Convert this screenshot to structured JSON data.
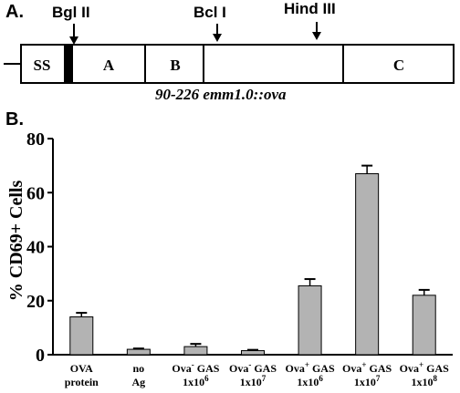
{
  "panel_a": {
    "label": "A.",
    "construct_name": "90-226 emm1.0::ova",
    "restriction_sites": [
      "Bgl II",
      "Bcl I",
      "Hind III"
    ],
    "segments": [
      {
        "label": "SS",
        "role": "signal sequence"
      },
      {
        "label": "",
        "role": "ova insert",
        "color": "#000000"
      },
      {
        "label": "A",
        "role": "A region"
      },
      {
        "label": "B",
        "role": "B region"
      },
      {
        "label": "",
        "role": "central region"
      },
      {
        "label": "C",
        "role": "C region"
      }
    ]
  },
  "panel_b": {
    "label": "B."
  },
  "chart_data": {
    "type": "bar",
    "ylabel": "% CD69+ Cells",
    "xlabel": "",
    "ylim": [
      0,
      80
    ],
    "yticks": [
      "0",
      "20",
      "40",
      "60",
      "80"
    ],
    "bar_color": "#b3b3b3",
    "categories": [
      {
        "line1": "OVA",
        "sup": "",
        "rest": "",
        "line2": "protein",
        "sup2": ""
      },
      {
        "line1": "no",
        "sup": "",
        "rest": "",
        "line2": "Ag",
        "sup2": ""
      },
      {
        "line1": "Ova",
        "sup": "-",
        "rest": " GAS",
        "line2": "1x10",
        "sup2": "6"
      },
      {
        "line1": "Ova",
        "sup": "-",
        "rest": " GAS",
        "line2": "1x10",
        "sup2": "7"
      },
      {
        "line1": "Ova",
        "sup": "+",
        "rest": " GAS",
        "line2": "1x10",
        "sup2": "6"
      },
      {
        "line1": "Ova",
        "sup": "+",
        "rest": " GAS",
        "line2": "1x10",
        "sup2": "7"
      },
      {
        "line1": "Ova",
        "sup": "+",
        "rest": " GAS",
        "line2": "1x10",
        "sup2": "8"
      }
    ],
    "values": [
      14,
      2,
      3,
      1.5,
      25.5,
      67,
      22
    ],
    "errors": [
      1.5,
      0.3,
      1.0,
      0.3,
      2.5,
      3.0,
      2.0
    ],
    "grid": false,
    "legend": "none"
  }
}
